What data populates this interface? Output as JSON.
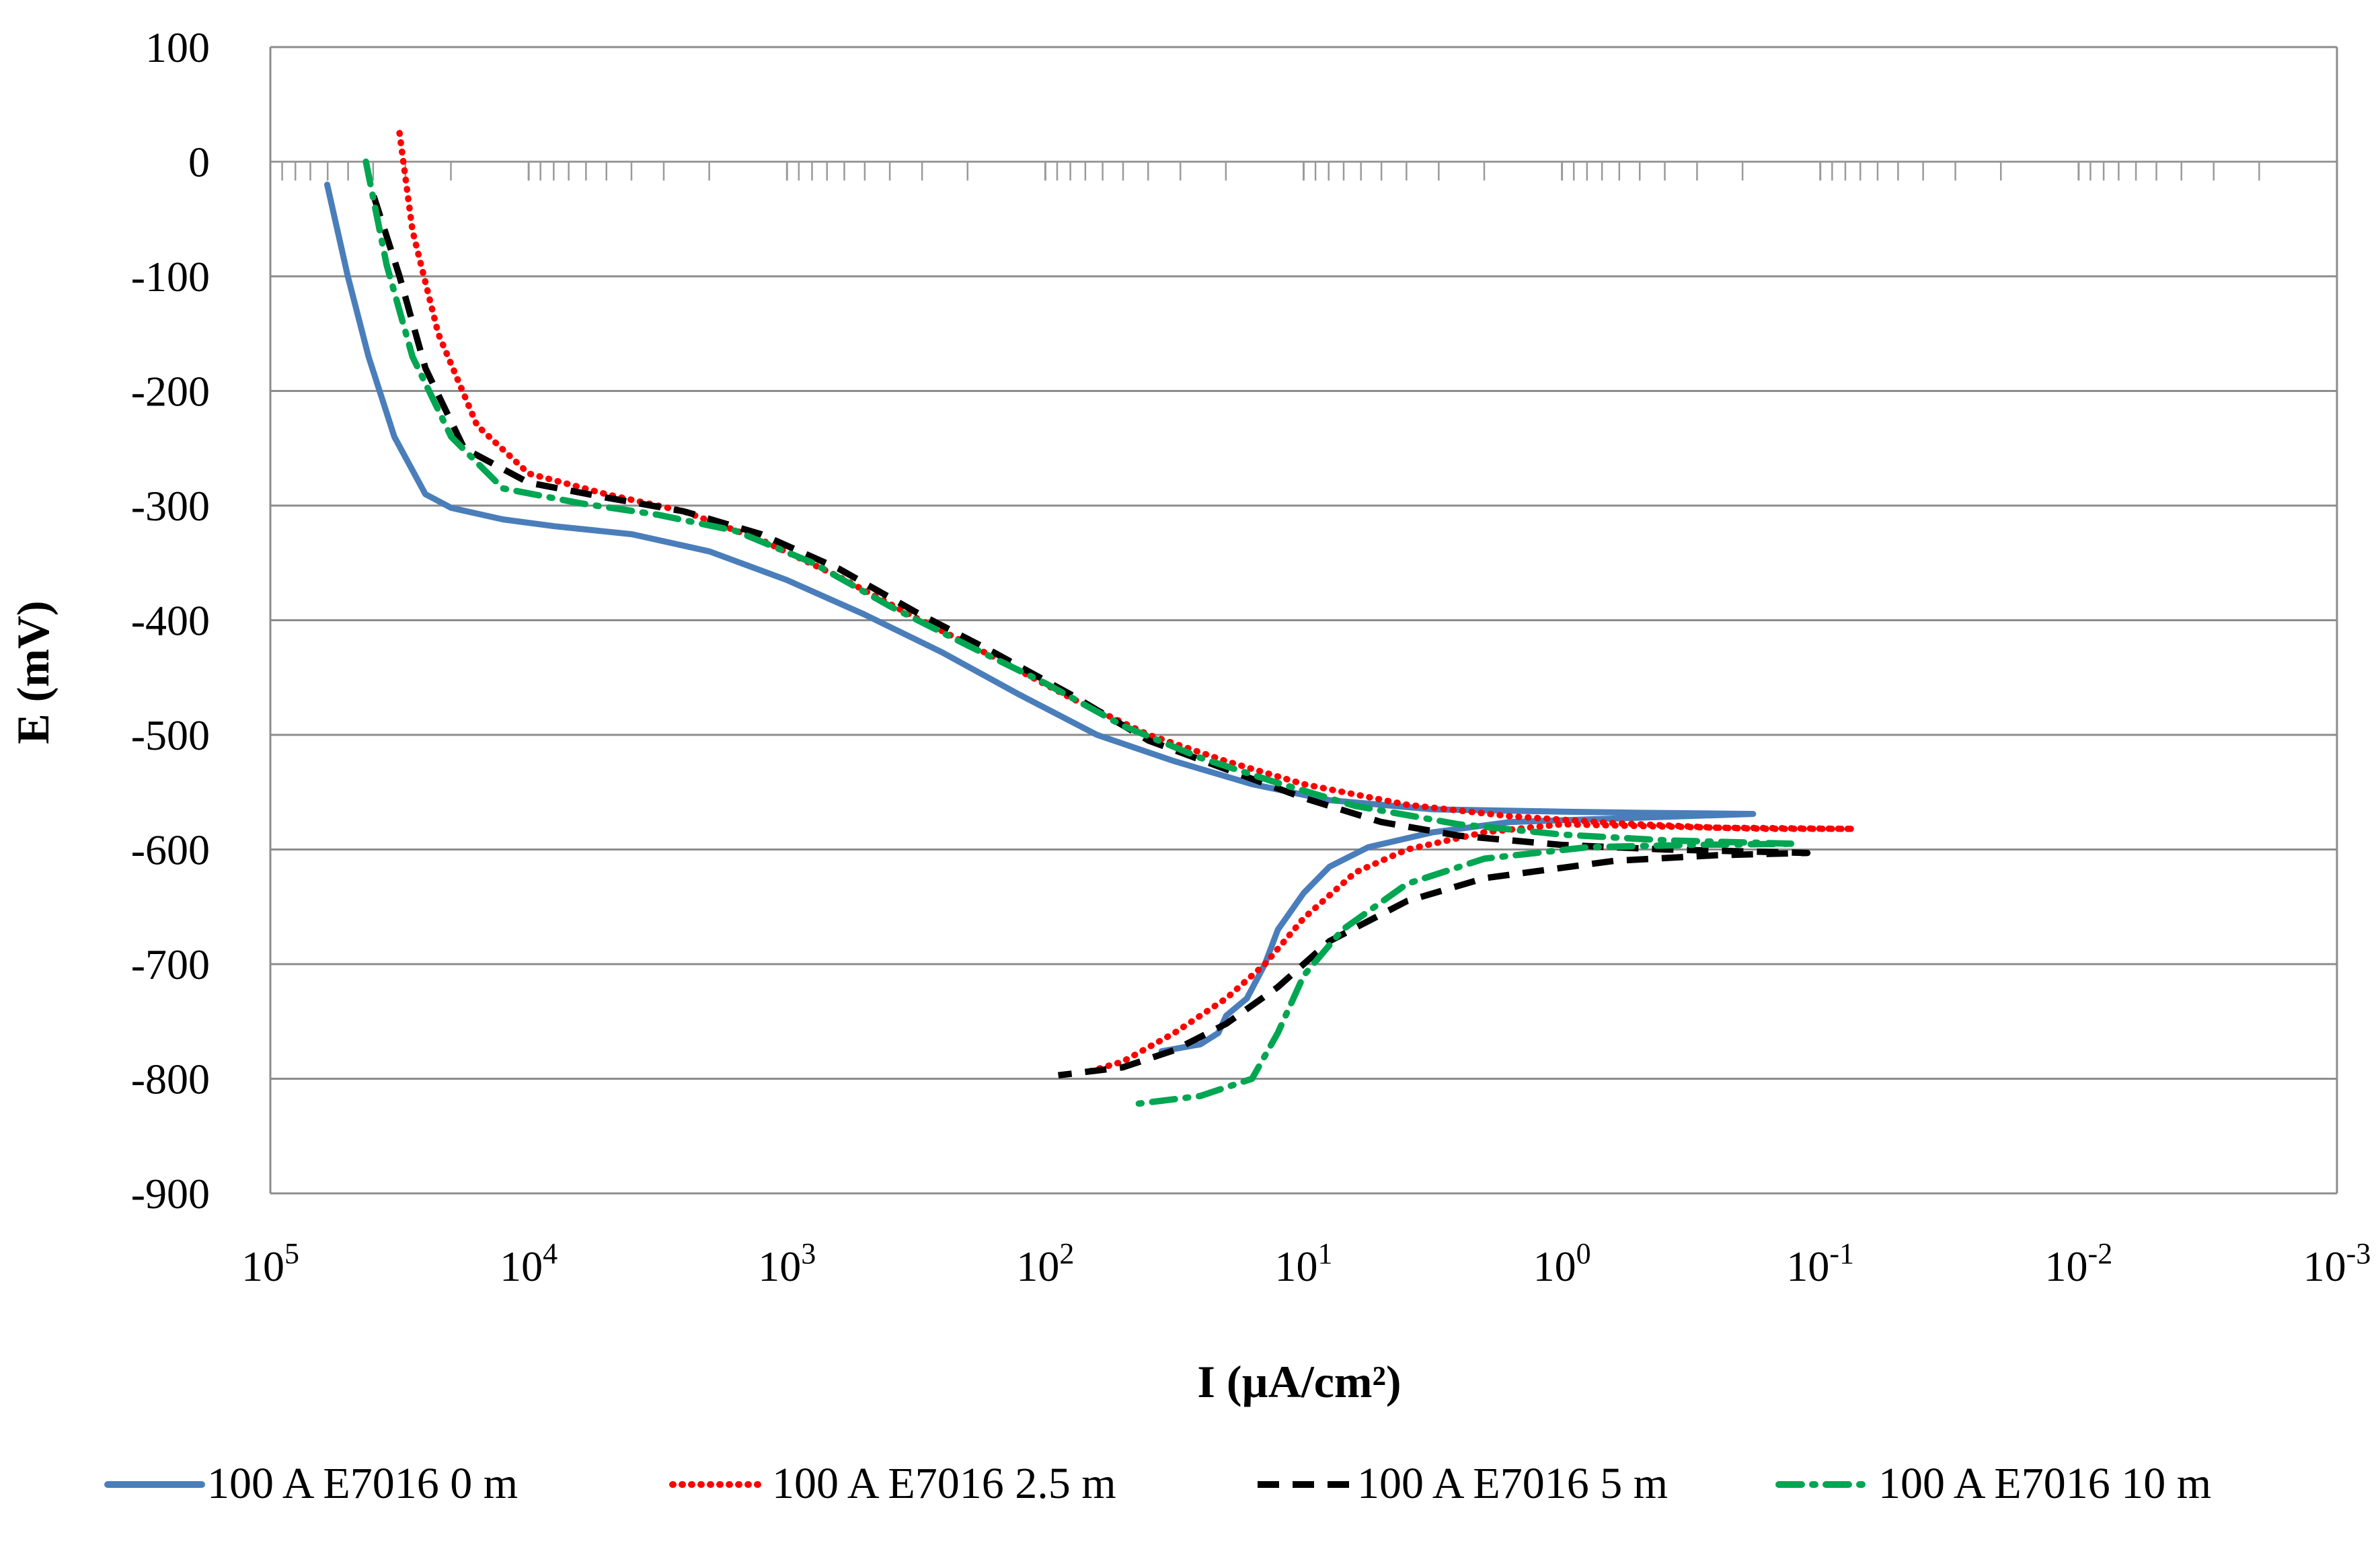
{
  "chart_data": {
    "type": "line",
    "title": "",
    "xlabel": "I (µA/cm²)",
    "ylabel": "E (mV)",
    "x_scale": "log",
    "x_reversed": true,
    "xlim_exponents": [
      5,
      -3
    ],
    "x_tick_labels": [
      {
        "base": "10",
        "exp": "5"
      },
      {
        "base": "10",
        "exp": "4"
      },
      {
        "base": "10",
        "exp": "3"
      },
      {
        "base": "10",
        "exp": "2"
      },
      {
        "base": "10",
        "exp": "1"
      },
      {
        "base": "10",
        "exp": "0"
      },
      {
        "base": "10",
        "exp": "-1"
      },
      {
        "base": "10",
        "exp": "-2"
      },
      {
        "base": "10",
        "exp": "-3"
      }
    ],
    "ylim": [
      -900,
      100
    ],
    "y_ticks": [
      "100",
      "0",
      "-100",
      "-200",
      "-300",
      "-400",
      "-500",
      "-600",
      "-700",
      "-800",
      "-900"
    ],
    "grid": true,
    "legend_position": "bottom",
    "series": [
      {
        "name": "100 A E7016 0 m",
        "color": "#4a7ebb",
        "style": "solid",
        "points": [
          [
            4.78,
            -20
          ],
          [
            4.7,
            -100
          ],
          [
            4.62,
            -170
          ],
          [
            4.52,
            -240
          ],
          [
            4.4,
            -290
          ],
          [
            4.3,
            -302
          ],
          [
            4.1,
            -312
          ],
          [
            3.9,
            -318
          ],
          [
            3.6,
            -325
          ],
          [
            3.3,
            -340
          ],
          [
            3.0,
            -365
          ],
          [
            2.7,
            -395
          ],
          [
            2.4,
            -428
          ],
          [
            2.1,
            -465
          ],
          [
            1.8,
            -500
          ],
          [
            1.5,
            -523
          ],
          [
            1.2,
            -543
          ],
          [
            0.9,
            -557
          ],
          [
            0.5,
            -565
          ],
          [
            0.0,
            -567
          ],
          [
            -0.3,
            -568
          ],
          [
            -0.74,
            -569
          ],
          [
            -0.2,
            -573
          ],
          [
            0.2,
            -576
          ],
          [
            0.5,
            -585
          ],
          [
            0.75,
            -598
          ],
          [
            0.9,
            -615
          ],
          [
            1.0,
            -638
          ],
          [
            1.1,
            -670
          ],
          [
            1.15,
            -700
          ],
          [
            1.22,
            -730
          ],
          [
            1.3,
            -745
          ],
          [
            1.33,
            -760
          ],
          [
            1.4,
            -770
          ],
          [
            1.55,
            -776
          ]
        ]
      },
      {
        "name": "100 A E7016 2.5 m",
        "color": "#ff0000",
        "style": "dotted",
        "points": [
          [
            4.5,
            25
          ],
          [
            4.45,
            -60
          ],
          [
            4.35,
            -150
          ],
          [
            4.2,
            -230
          ],
          [
            4.0,
            -272
          ],
          [
            3.7,
            -290
          ],
          [
            3.4,
            -305
          ],
          [
            3.1,
            -330
          ],
          [
            2.8,
            -362
          ],
          [
            2.5,
            -398
          ],
          [
            2.2,
            -432
          ],
          [
            1.9,
            -468
          ],
          [
            1.6,
            -500
          ],
          [
            1.3,
            -523
          ],
          [
            1.0,
            -543
          ],
          [
            0.6,
            -561
          ],
          [
            0.2,
            -571
          ],
          [
            -0.2,
            -577
          ],
          [
            -0.6,
            -581
          ],
          [
            -1.13,
            -582
          ],
          [
            -0.8,
            -582
          ],
          [
            -0.4,
            -580
          ],
          [
            0.0,
            -578
          ],
          [
            0.3,
            -585
          ],
          [
            0.6,
            -600
          ],
          [
            0.8,
            -620
          ],
          [
            1.0,
            -660
          ],
          [
            1.15,
            -700
          ],
          [
            1.3,
            -730
          ],
          [
            1.5,
            -760
          ],
          [
            1.7,
            -785
          ],
          [
            1.85,
            -795
          ]
        ]
      },
      {
        "name": "100 A E7016 5 m",
        "color": "#000000",
        "style": "dashed",
        "points": [
          [
            4.6,
            -30
          ],
          [
            4.5,
            -100
          ],
          [
            4.4,
            -180
          ],
          [
            4.25,
            -250
          ],
          [
            4.0,
            -280
          ],
          [
            3.7,
            -293
          ],
          [
            3.4,
            -305
          ],
          [
            3.1,
            -325
          ],
          [
            2.8,
            -355
          ],
          [
            2.5,
            -393
          ],
          [
            2.2,
            -428
          ],
          [
            1.9,
            -465
          ],
          [
            1.6,
            -505
          ],
          [
            1.3,
            -530
          ],
          [
            1.0,
            -555
          ],
          [
            0.7,
            -576
          ],
          [
            0.4,
            -588
          ],
          [
            0.0,
            -596
          ],
          [
            -0.4,
            -600
          ],
          [
            -0.95,
            -603
          ],
          [
            -0.6,
            -605
          ],
          [
            -0.2,
            -610
          ],
          [
            0.3,
            -625
          ],
          [
            0.6,
            -645
          ],
          [
            0.9,
            -680
          ],
          [
            1.1,
            -720
          ],
          [
            1.3,
            -752
          ],
          [
            1.5,
            -775
          ],
          [
            1.7,
            -790
          ],
          [
            1.95,
            -797
          ]
        ]
      },
      {
        "name": "100 A E7016 10 m",
        "color": "#00a651",
        "style": "dashdot",
        "points": [
          [
            4.63,
            0
          ],
          [
            4.55,
            -90
          ],
          [
            4.45,
            -170
          ],
          [
            4.3,
            -240
          ],
          [
            4.1,
            -285
          ],
          [
            3.8,
            -298
          ],
          [
            3.5,
            -308
          ],
          [
            3.2,
            -322
          ],
          [
            2.9,
            -350
          ],
          [
            2.6,
            -388
          ],
          [
            2.3,
            -422
          ],
          [
            2.0,
            -455
          ],
          [
            1.7,
            -492
          ],
          [
            1.4,
            -520
          ],
          [
            1.1,
            -542
          ],
          [
            0.8,
            -562
          ],
          [
            0.4,
            -578
          ],
          [
            0.0,
            -587
          ],
          [
            -0.4,
            -592
          ],
          [
            -0.9,
            -595
          ],
          [
            -0.5,
            -596
          ],
          [
            -0.1,
            -598
          ],
          [
            0.3,
            -608
          ],
          [
            0.6,
            -630
          ],
          [
            0.85,
            -670
          ],
          [
            1.0,
            -710
          ],
          [
            1.1,
            -760
          ],
          [
            1.2,
            -800
          ],
          [
            1.4,
            -815
          ],
          [
            1.65,
            -822
          ]
        ]
      }
    ]
  }
}
